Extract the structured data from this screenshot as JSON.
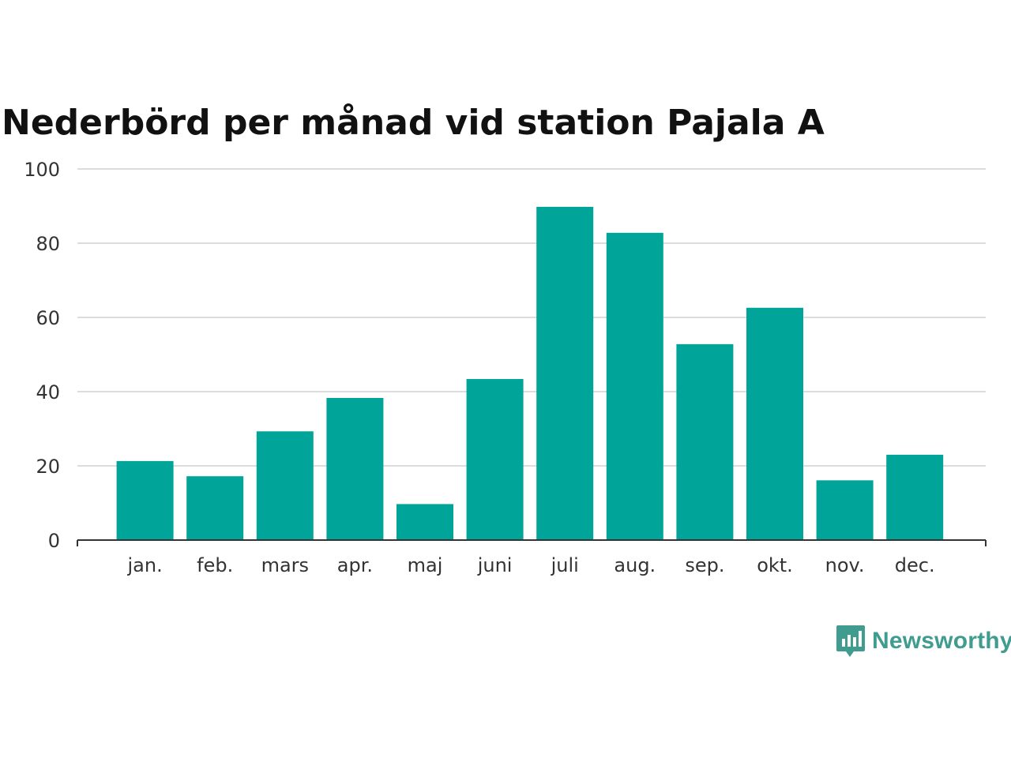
{
  "chart_data": {
    "type": "bar",
    "title": "Nederbörd per månad vid station Pajala A",
    "categories": [
      "jan.",
      "feb.",
      "mars",
      "apr.",
      "maj",
      "juni",
      "juli",
      "aug.",
      "sep.",
      "okt.",
      "nov.",
      "dec."
    ],
    "values": [
      21.3,
      17.2,
      29.3,
      38.3,
      9.7,
      43.4,
      89.8,
      82.8,
      52.8,
      62.6,
      16.1,
      23.0
    ],
    "ylim": [
      0,
      100
    ],
    "yticks": [
      0,
      20,
      40,
      60,
      80,
      100
    ],
    "xlabel": "",
    "ylabel": "",
    "grid": true,
    "bar_color": "#00a499"
  },
  "brand": {
    "name": "Newsworthy",
    "icon": "newsworthy-logo-icon",
    "color": "#3f9c8f"
  }
}
